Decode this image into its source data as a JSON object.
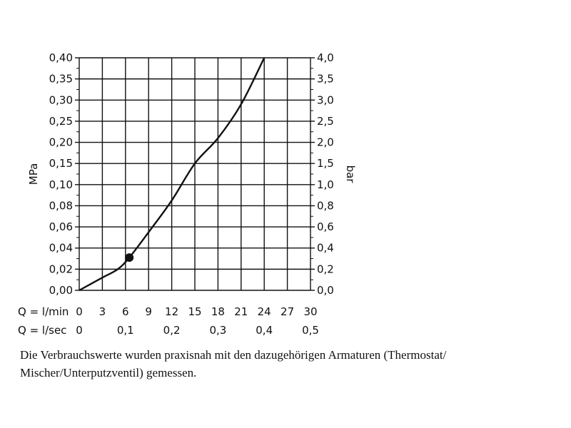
{
  "chart_data": {
    "type": "line",
    "y_left": {
      "label": "MPa",
      "ticks": [
        "0,00",
        "0,02",
        "0,04",
        "0,06",
        "0,08",
        "0,10",
        "0,15",
        "0,20",
        "0,25",
        "0,30",
        "0,35",
        "0,40"
      ],
      "values": [
        0,
        0.02,
        0.04,
        0.06,
        0.08,
        0.1,
        0.15,
        0.2,
        0.25,
        0.3,
        0.35,
        0.4
      ]
    },
    "y_right": {
      "label": "bar",
      "ticks": [
        "0,0",
        "0,2",
        "0,4",
        "0,6",
        "0,8",
        "1,0",
        "1,5",
        "2,0",
        "2,5",
        "3,0",
        "3,5",
        "4,0"
      ]
    },
    "x_rows": [
      {
        "label": "Q = l/min",
        "ticks": [
          "0",
          "3",
          "6",
          "9",
          "12",
          "15",
          "18",
          "21",
          "24",
          "27",
          "30"
        ],
        "values": [
          0,
          3,
          6,
          9,
          12,
          15,
          18,
          21,
          24,
          27,
          30
        ]
      },
      {
        "label": "Q = l/sec",
        "ticks": [
          "0",
          "0,1",
          "0,2",
          "0,3",
          "0,4",
          "0,5"
        ],
        "values": [
          0,
          0.1,
          0.2,
          0.3,
          0.4,
          0.5
        ]
      }
    ],
    "xlim": [
      0,
      30
    ],
    "ylim": [
      0,
      0.4
    ],
    "grid": true,
    "series": [
      {
        "points": [
          [
            0,
            0
          ],
          [
            3,
            0.012
          ],
          [
            5,
            0.02
          ],
          [
            6.5,
            0.031
          ],
          [
            9,
            0.055
          ],
          [
            12,
            0.085
          ],
          [
            15,
            0.15
          ],
          [
            18,
            0.21
          ],
          [
            21,
            0.29
          ],
          [
            24,
            0.4
          ]
        ]
      }
    ],
    "marker": {
      "x": 6.5,
      "y": 0.031
    }
  },
  "caption": "Die Verbrauchswerte wurden praxisnah mit den dazugehörigen Armaturen (Thermostat/ Mischer/Unterputzventil) gemessen."
}
